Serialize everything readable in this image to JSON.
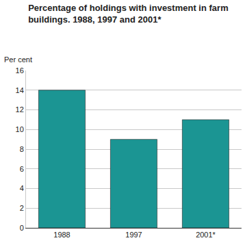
{
  "chart_data": {
    "type": "bar",
    "title": "Percentage of holdings with investment in farm buildings. 1988, 1997 and 2001*",
    "ylabel": "Per cent",
    "categories": [
      "1988",
      "1997",
      "2001*"
    ],
    "values": [
      14,
      9,
      11
    ],
    "color": "#1b9593",
    "ylim": [
      0,
      16
    ],
    "yticks": [
      0,
      2,
      4,
      6,
      8,
      10,
      12,
      14,
      16
    ],
    "grid": true
  }
}
